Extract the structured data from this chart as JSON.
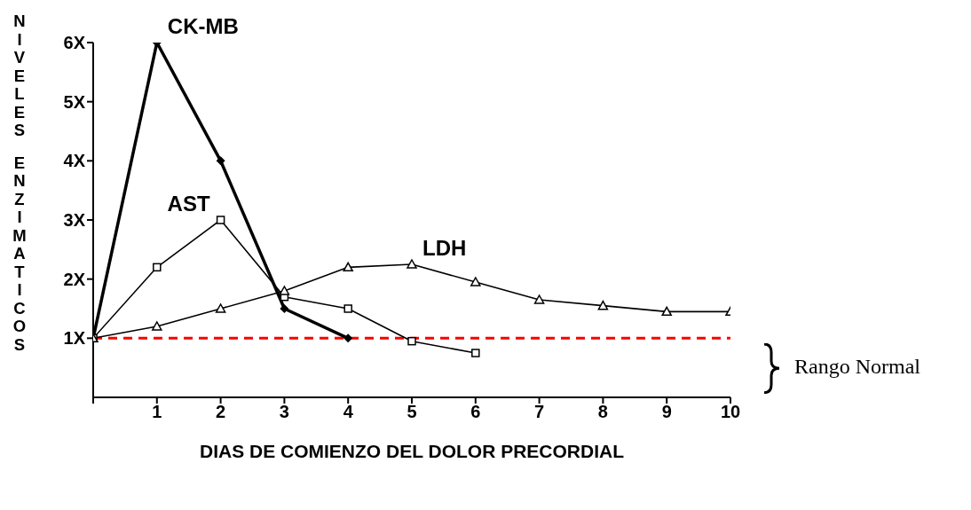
{
  "chart_data": {
    "type": "line",
    "xlabel": "DIAS DE COMIENZO DEL DOLOR PRECORDIAL",
    "ylabel": "NIVELES ENZIMATICOS",
    "xlim": [
      0,
      10
    ],
    "xticks": [
      {
        "value": 0,
        "label": null
      },
      1,
      2,
      3,
      4,
      5,
      6,
      7,
      8,
      9,
      10
    ],
    "ylim": [
      0,
      6
    ],
    "yticks": [
      {
        "value": 1,
        "label": "1X"
      },
      {
        "value": 2,
        "label": "2X"
      },
      {
        "value": 3,
        "label": "3X"
      },
      {
        "value": 4,
        "label": "4X"
      },
      {
        "value": 5,
        "label": "5X"
      },
      {
        "value": 6,
        "label": "6X"
      }
    ],
    "grid": false,
    "legend": false,
    "line_style": "solid",
    "series": [
      {
        "name": "CK-MB",
        "color": "#000000",
        "marker": "diamond",
        "x": [
          0,
          1,
          2,
          3,
          4
        ],
        "values": [
          1,
          6,
          4,
          1.5,
          1
        ]
      },
      {
        "name": "AST",
        "color": "#000000",
        "marker": "square",
        "x": [
          0,
          1,
          2,
          3,
          4,
          5,
          6
        ],
        "values": [
          1,
          2.2,
          3,
          1.7,
          1.5,
          0.95,
          0.75
        ]
      },
      {
        "name": "LDH",
        "color": "#000000",
        "marker": "triangle",
        "x": [
          0,
          1,
          2,
          3,
          4,
          5,
          6,
          7,
          8,
          9,
          10
        ],
        "values": [
          1,
          1.2,
          1.5,
          1.8,
          2.2,
          2.25,
          1.95,
          1.65,
          1.55,
          1.45,
          1.45
        ]
      }
    ],
    "ref_lines": [
      {
        "axis": "y",
        "value": 1,
        "color": "#ff0000",
        "line_style": "dashed"
      }
    ],
    "annotations": [
      "Rango Normal"
    ]
  }
}
